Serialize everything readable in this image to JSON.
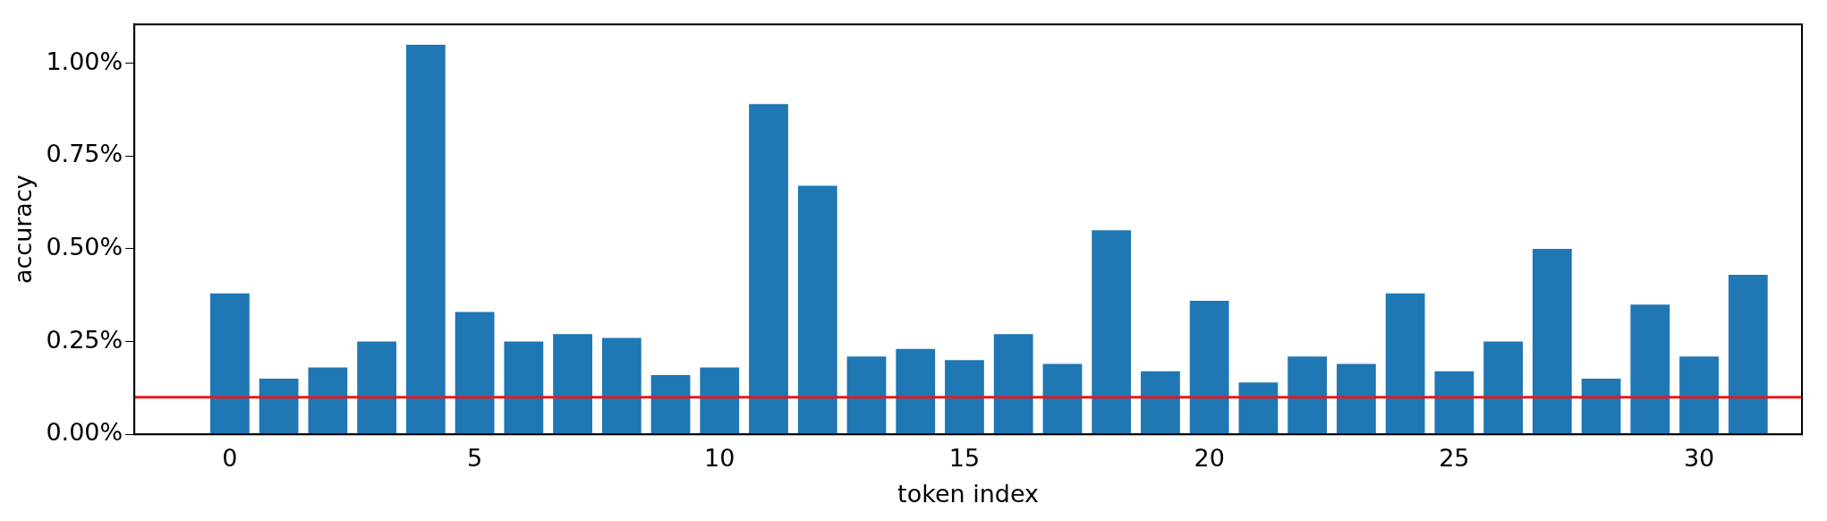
{
  "chart_data": {
    "type": "bar",
    "xlabel": "token index",
    "ylabel": "accuracy",
    "x": [
      0,
      1,
      2,
      3,
      4,
      5,
      6,
      7,
      8,
      9,
      10,
      11,
      12,
      13,
      14,
      15,
      16,
      17,
      18,
      19,
      20,
      21,
      22,
      23,
      24,
      25,
      26,
      27,
      28,
      29,
      30,
      31
    ],
    "values": [
      0.38,
      0.15,
      0.18,
      0.25,
      1.05,
      0.33,
      0.25,
      0.27,
      0.26,
      0.16,
      0.18,
      0.89,
      0.67,
      0.21,
      0.23,
      0.2,
      0.27,
      0.19,
      0.55,
      0.17,
      0.36,
      0.14,
      0.21,
      0.19,
      0.38,
      0.17,
      0.25,
      0.5,
      0.15,
      0.35,
      0.21,
      0.43
    ],
    "color": "#1f77b4",
    "xlim": [
      -1.95,
      32.1
    ],
    "xticks": [
      0,
      5,
      10,
      15,
      20,
      25,
      30
    ],
    "ylim": [
      0,
      1.105
    ],
    "yticks": [
      {
        "value": 0,
        "label": "0.00%"
      },
      {
        "value": 0.25,
        "label": "0.25%"
      },
      {
        "value": 0.5,
        "label": "0.50%"
      },
      {
        "value": 0.75,
        "label": "0.75%"
      },
      {
        "value": 1,
        "label": "1.00%"
      }
    ],
    "ref_lines": [
      {
        "axis": "y",
        "value": 0.1,
        "color": "#e41a1c"
      }
    ],
    "grid": false,
    "legend": false
  }
}
